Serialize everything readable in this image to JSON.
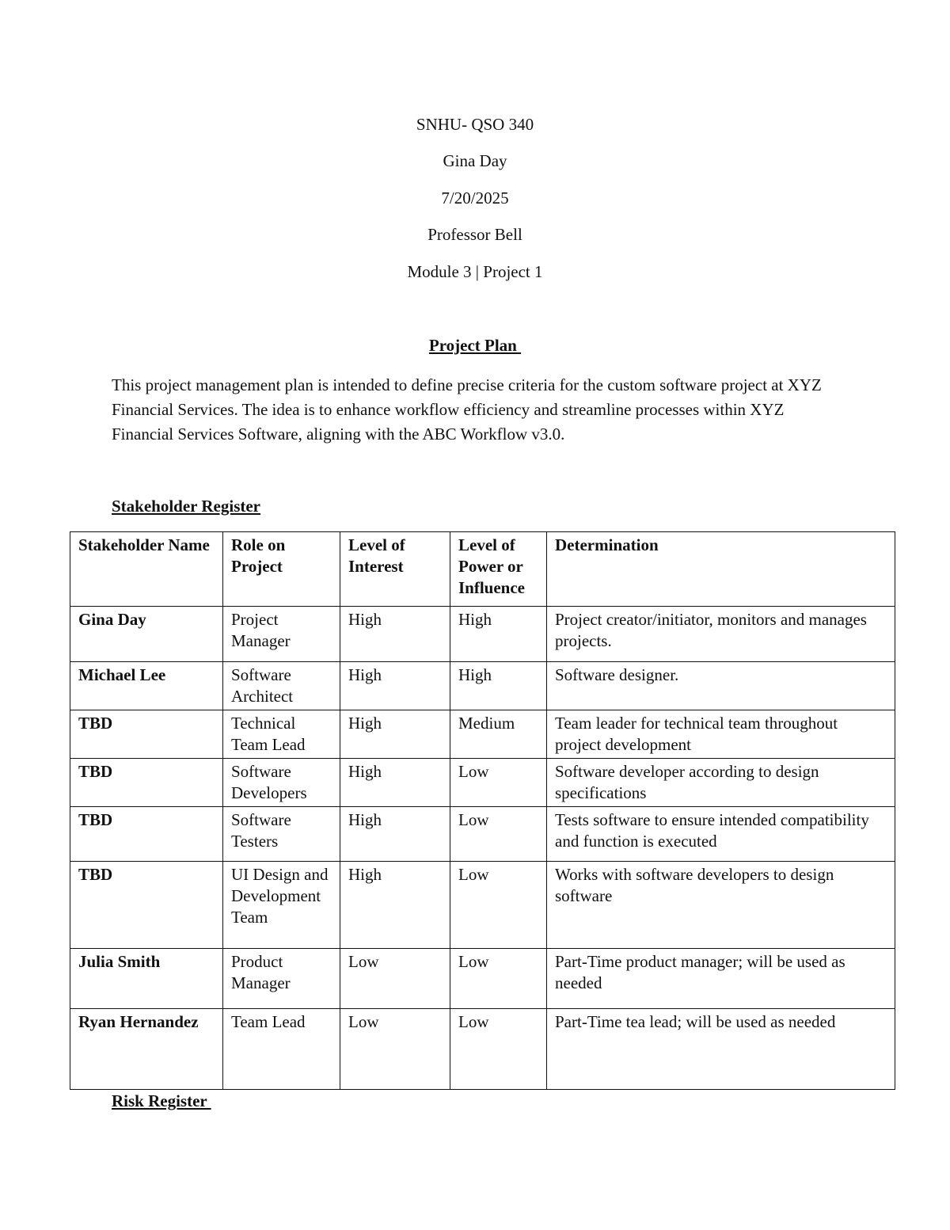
{
  "header": {
    "course": "SNHU- QSO 340",
    "author": "Gina Day",
    "date": "7/20/2025",
    "professor": "Professor Bell",
    "module": "Module 3 | Project 1"
  },
  "plan": {
    "title": "Project Plan ",
    "intro": "This project management plan is intended to define precise criteria for the custom software project at XYZ Financial Services. The idea is to enhance workflow efficiency and streamline processes within XYZ Financial Services Software, aligning with the ABC Workflow v3.0."
  },
  "stakeholder_register": {
    "title": "Stakeholder Register",
    "columns": [
      "Stakeholder Name",
      "Role on Project",
      "Level of Interest",
      "Level of Power or Influence",
      "Determination"
    ],
    "rows": [
      [
        "Gina Day",
        "Project Manager",
        "High",
        "High",
        "Project creator/initiator, monitors and manages projects."
      ],
      [
        "Michael Lee",
        "Software Architect",
        "High",
        "High",
        "Software designer."
      ],
      [
        "TBD",
        "Technical Team Lead",
        "High",
        "Medium",
        "Team leader for technical team throughout project development"
      ],
      [
        "TBD",
        "Software Developers",
        "High",
        "Low",
        "Software developer according to design specifications"
      ],
      [
        "TBD",
        "Software Testers",
        "High",
        "Low",
        "Tests software to ensure intended compatibility and function is executed"
      ],
      [
        "TBD",
        "UI Design and Development Team",
        "High",
        "Low",
        "Works with software developers to design software"
      ],
      [
        "Julia Smith",
        "Product Manager",
        "Low",
        "Low",
        "Part-Time product manager; will be used as needed"
      ],
      [
        "Ryan Hernandez",
        "Team Lead",
        "Low",
        "Low",
        "Part-Time tea lead; will be used as needed"
      ]
    ]
  },
  "risk_register": {
    "title": "Risk Register "
  }
}
